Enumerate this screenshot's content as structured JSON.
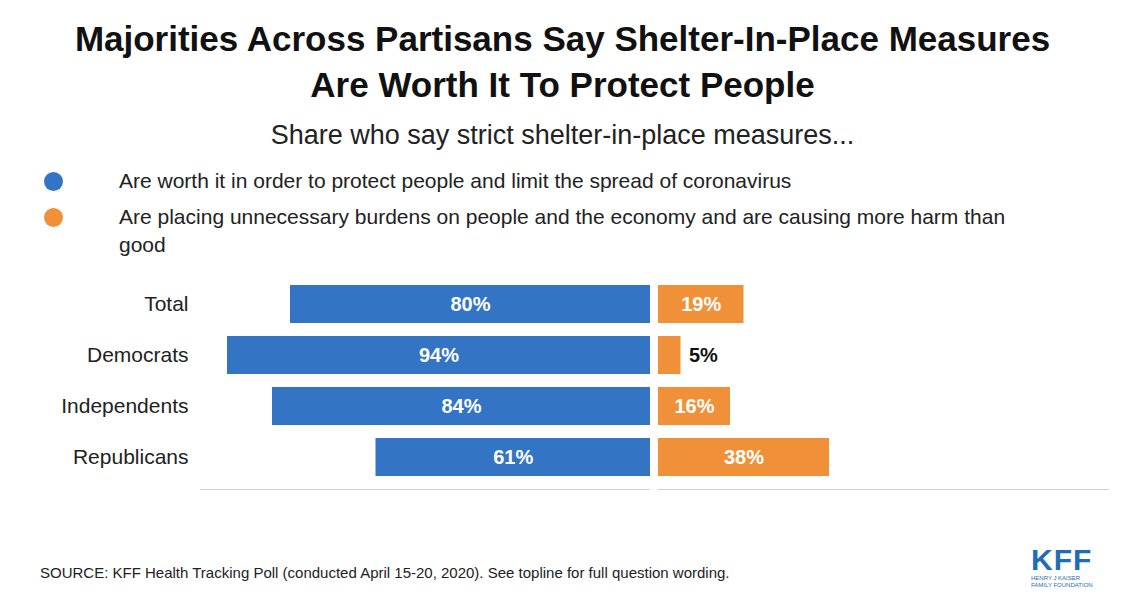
{
  "chart_data": {
    "type": "bar",
    "orientation": "horizontal",
    "title": "Majorities Across Partisans Say Shelter-In-Place Measures Are Worth It To Protect People",
    "subtitle": "Share who say strict shelter-in-place measures...",
    "categories": [
      "Total",
      "Democrats",
      "Independents",
      "Republicans"
    ],
    "series": [
      {
        "name": "Are worth it in order to protect people and limit the spread of coronavirus",
        "color": "#3474c4",
        "values": [
          80,
          94,
          84,
          61
        ],
        "value_labels": [
          "80%",
          "94%",
          "84%",
          "61%"
        ]
      },
      {
        "name": "Are placing unnecessary burdens on people and the economy and are causing more harm than good",
        "color": "#f0913a",
        "values": [
          19,
          5,
          16,
          38
        ],
        "value_labels": [
          "19%",
          "5%",
          "16%",
          "38%"
        ]
      }
    ],
    "xlim": [
      0,
      100
    ],
    "data_labels": true,
    "tick_labels": "y",
    "legend": "top-left",
    "source": "SOURCE: KFF Health Tracking Poll (conducted April 15-20, 2020). See topline for full question wording.",
    "logo": {
      "text": "KFF",
      "subtext": "HENRY J KAISER FAMILY FOUNDATION"
    }
  }
}
